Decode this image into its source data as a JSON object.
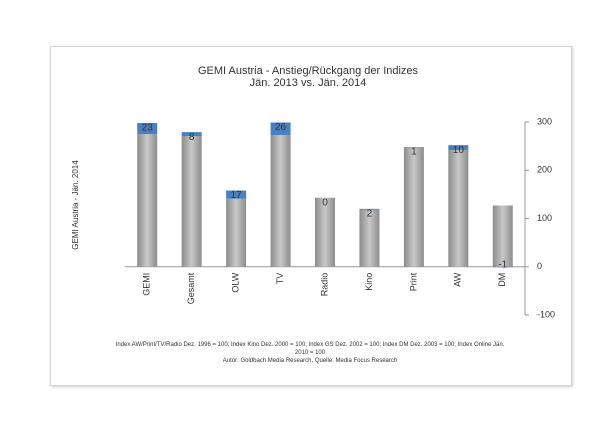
{
  "chart_data": {
    "type": "stacked-bar",
    "title": "GEMI Austria - Anstieg/Rückgang der Indizes",
    "subtitle": "Jän. 2013 vs. Jän. 2014",
    "y_label": "GEMI Austria - Jän. 2014",
    "categories": [
      "GEMI",
      "Gesamt",
      "OLW",
      "TV",
      "Radio",
      "Kino",
      "Print",
      "AW",
      "DM"
    ],
    "series": [
      {
        "color": "#a6a6a6",
        "values": [
          275,
          271,
          141,
          273,
          143,
          118,
          247,
          242,
          127
        ]
      },
      {
        "color": "#4a7fc0",
        "values": [
          23,
          8,
          17,
          26,
          0,
          2,
          1,
          10,
          -1
        ],
        "labels": true,
        "label_color": "#222222",
        "negative_label_color": "#e02020"
      }
    ],
    "ylim": [
      -100,
      300
    ],
    "yticks": [
      -100,
      0,
      100,
      200,
      300
    ],
    "footnote": "Index AW/Print/TV/Radio Dez. 1996 = 100; Index Kino Dez. 2000 = 100; Index GS Dez. 2002 = 100; Index DM Dez. 2003 = 100; Index Online Jän. 2010 = 100",
    "source": "Autor: Goldbach Media Research, Quelle: Media Focus Research"
  }
}
